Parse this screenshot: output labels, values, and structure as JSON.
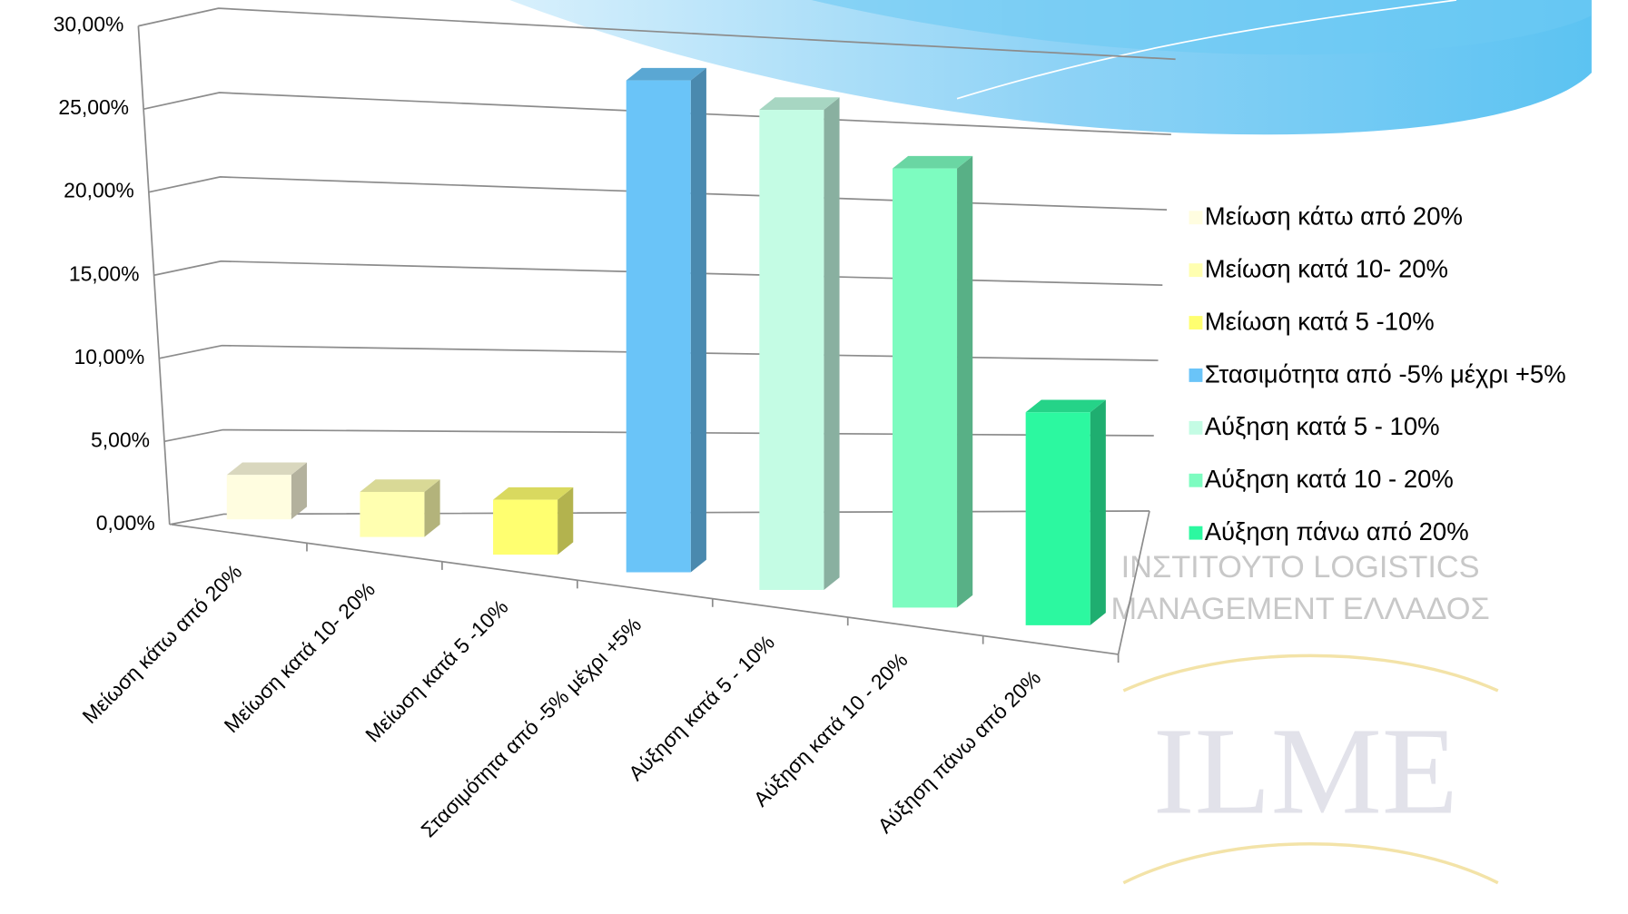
{
  "chart_data": {
    "type": "bar3d",
    "categories": [
      "Μείωση κάτω από 20%",
      "Μείωση κατά 10- 20%",
      "Μείωση κατά 5 -10%",
      "Στασιμότητα από -5% μέχρι +5%",
      "Αύξηση κατά 5 - 10%",
      "Αύξηση κατά 10 - 20%",
      "Αύξηση πάνω από 20%"
    ],
    "values": [
      2.5,
      2.5,
      3,
      26.5,
      25.5,
      23,
      11
    ],
    "colors": [
      "#fffde0",
      "#ffffb0",
      "#ffff70",
      "#6ac4f8",
      "#c4fce4",
      "#7dfcc0",
      "#2cf8a0"
    ],
    "ylim": [
      0,
      30
    ],
    "yticks": [
      {
        "value": 0,
        "label": "0,00%"
      },
      {
        "value": 5,
        "label": "5,00%"
      },
      {
        "value": 10,
        "label": "10,00%"
      },
      {
        "value": 15,
        "label": "15,00%"
      },
      {
        "value": 20,
        "label": "20,00%"
      },
      {
        "value": 25,
        "label": "25,00%"
      },
      {
        "value": 30,
        "label": "30,00%"
      }
    ],
    "grid": true,
    "legend": "right"
  },
  "watermark": {
    "line1": "ΙΝΣΤΙΤΟΥΤΟ LOGISTICS",
    "line2": "MANAGEMENT ΕΛΛΑΔΟΣ",
    "logo": "ILME"
  }
}
